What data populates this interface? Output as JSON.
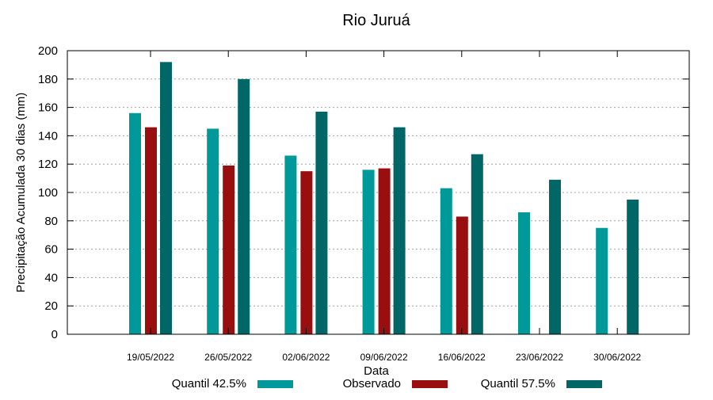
{
  "chart_data": {
    "type": "bar",
    "title": "Rio Juruá",
    "xlabel": "Data",
    "ylabel": "Precipitação Acumulada 30 dias (mm)",
    "ylim": [
      0,
      200
    ],
    "yticks": [
      0,
      20,
      40,
      60,
      80,
      100,
      120,
      140,
      160,
      180,
      200
    ],
    "grid": true,
    "legend_position": "bottom",
    "categories": [
      "19/05/2022",
      "26/05/2022",
      "02/06/2022",
      "09/06/2022",
      "16/06/2022",
      "23/06/2022",
      "30/06/2022"
    ],
    "series": [
      {
        "name": "Quantil 42.5%",
        "color": "#009999",
        "values": [
          156,
          145,
          126,
          116,
          103,
          86,
          75
        ]
      },
      {
        "name": "Observado",
        "color": "#990F0F",
        "values": [
          146,
          119,
          115,
          117,
          83,
          null,
          null
        ]
      },
      {
        "name": "Quantil 57.5%",
        "color": "#006666",
        "values": [
          192,
          180,
          157,
          146,
          127,
          109,
          95
        ]
      }
    ]
  }
}
